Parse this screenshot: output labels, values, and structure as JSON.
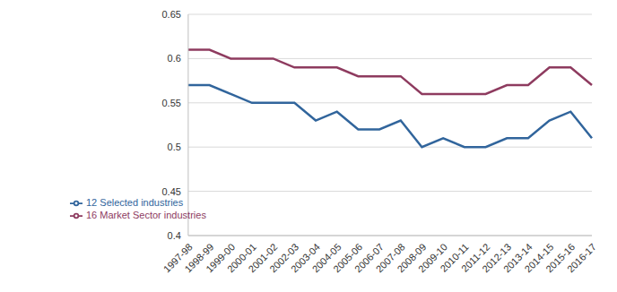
{
  "chart_data": {
    "type": "line",
    "categories": [
      "1997-98",
      "1998-99",
      "1999-00",
      "2000-01",
      "2001-02",
      "2002-03",
      "2003-04",
      "2004-05",
      "2005-06",
      "2006-07",
      "2007-08",
      "2008-09",
      "2009-10",
      "2010-11",
      "2011-12",
      "2012-13",
      "2013-14",
      "2014-15",
      "2015-16",
      "2016-17"
    ],
    "series": [
      {
        "name": "12 Selected industries",
        "color": "#31659c",
        "values": [
          0.57,
          0.57,
          0.56,
          0.55,
          0.55,
          0.55,
          0.53,
          0.54,
          0.52,
          0.52,
          0.53,
          0.5,
          0.51,
          0.5,
          0.5,
          0.51,
          0.51,
          0.53,
          0.54,
          0.51
        ]
      },
      {
        "name": "16 Market Sector industries",
        "color": "#8e3b5f",
        "values": [
          0.61,
          0.61,
          0.6,
          0.6,
          0.6,
          0.59,
          0.59,
          0.59,
          0.58,
          0.58,
          0.58,
          0.56,
          0.56,
          0.56,
          0.56,
          0.57,
          0.57,
          0.59,
          0.59,
          0.57
        ]
      }
    ],
    "ylim": [
      0.4,
      0.65
    ],
    "yticks": [
      0.4,
      0.45,
      0.5,
      0.55,
      0.6,
      0.65
    ],
    "grid": true,
    "legend": "lower left"
  }
}
